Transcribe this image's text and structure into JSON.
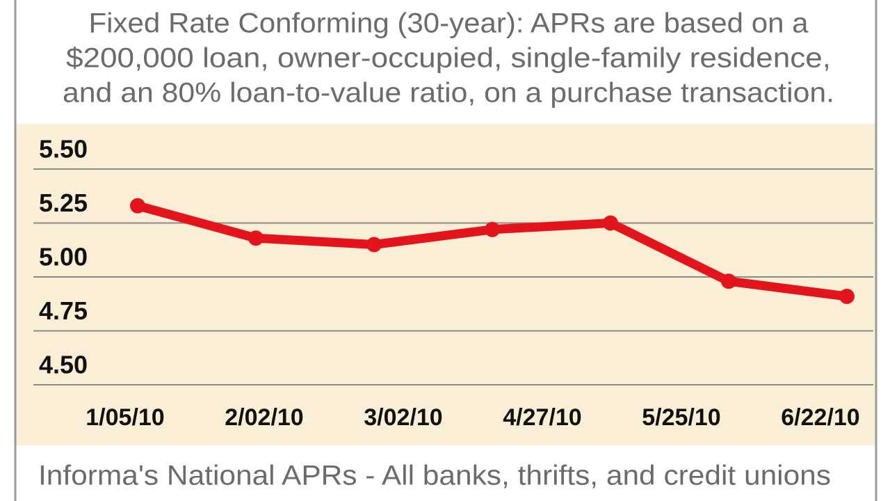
{
  "chart_data": {
    "type": "line",
    "title": [
      "Fixed Rate Conforming (30-year): APRs are based on a",
      "$200,000 loan, owner-occupied, single-family residence,",
      "and an 80% loan-to-value ratio, on a purchase transaction."
    ],
    "categories": [
      "1/05/10",
      "2/02/10",
      "3/02/10",
      null,
      "4/27/10",
      "5/25/10",
      "6/22/10"
    ],
    "values": [
      5.33,
      5.18,
      5.15,
      5.22,
      5.25,
      4.98,
      4.91
    ],
    "color": "#e3141c",
    "ylim": [
      4.5,
      5.5
    ],
    "yticks": [
      {
        "value": 5.5,
        "label": "5.50"
      },
      {
        "value": 5.25,
        "label": "5.25"
      },
      {
        "value": 5,
        "label": "5.00"
      },
      {
        "value": 4.75,
        "label": "4.75"
      },
      {
        "value": 4.5,
        "label": "4.50"
      }
    ],
    "grid": true,
    "source": "Informa's National APRs - All banks, thrifts, and credit unions"
  }
}
